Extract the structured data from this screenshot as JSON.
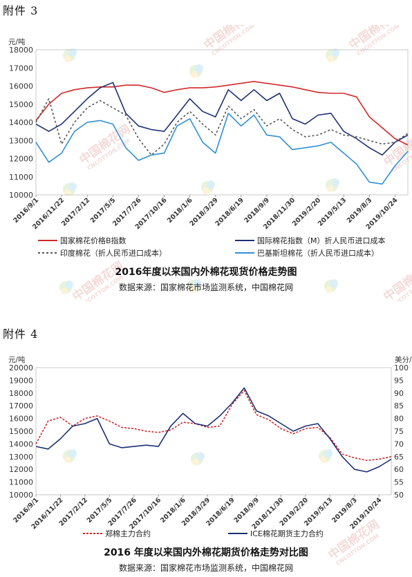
{
  "annex3_label": "附件 3",
  "annex4_label": "附件 4",
  "watermark": {
    "text": "中国棉花网",
    "sub": "CNCOTTON.COM"
  },
  "chart_data": [
    {
      "type": "line",
      "title": "2016年度以来国内外棉花现货价格走势图",
      "source": "数据来源：国家棉花市场监测系统，中国棉花网",
      "yunit": "元/吨",
      "ylim": [
        10000,
        18000
      ],
      "yticks": [
        10000,
        11000,
        12000,
        13000,
        14000,
        15000,
        16000,
        17000,
        18000
      ],
      "xticks": [
        "2016/9/1",
        "2016/11/22",
        "2017/2/12",
        "2017/5/5",
        "2017/7/26",
        "2017/10/16",
        "2018/1/6",
        "2018/3/29",
        "2018/6/19",
        "2018/9/9",
        "2018/11/30",
        "2019/2/20",
        "2019/5/13",
        "2019/8/3",
        "2019/10/24"
      ],
      "x": [
        0,
        0.5,
        1,
        1.5,
        2,
        2.5,
        3,
        3.5,
        4,
        4.5,
        5,
        5.5,
        6,
        6.5,
        7,
        7.5,
        8,
        8.5,
        9,
        9.5,
        10,
        10.5,
        11,
        11.5,
        12,
        12.5,
        13,
        13.5,
        14,
        14.5
      ],
      "series": [
        {
          "name": "国家棉花价格B指数",
          "color": "#d0282a",
          "dash": "",
          "values": [
            14100,
            15000,
            15600,
            15800,
            15900,
            15950,
            15950,
            16050,
            16050,
            15900,
            15650,
            15800,
            15900,
            15900,
            15950,
            16050,
            16150,
            16250,
            16150,
            16050,
            15950,
            15800,
            15650,
            15600,
            15600,
            15400,
            14300,
            13700,
            13100,
            12750
          ]
        },
        {
          "name": "国际棉花指数（M）折人民币进口成本",
          "color": "#1c2f73",
          "dash": "",
          "values": [
            13900,
            13500,
            13900,
            14600,
            15300,
            15900,
            16200,
            14500,
            13800,
            13600,
            13500,
            14400,
            15300,
            14600,
            14300,
            15800,
            15200,
            15800,
            15200,
            15600,
            14200,
            13900,
            14400,
            14500,
            13500,
            13100,
            12600,
            12200,
            12900,
            13300
          ]
        },
        {
          "name": "印度棉花（折人民币进口成本）",
          "color": "#555555",
          "dash": "3,3",
          "values": [
            14000,
            15300,
            12800,
            14000,
            14800,
            15200,
            14800,
            14400,
            13100,
            12200,
            12800,
            14000,
            14600,
            13900,
            13300,
            14900,
            14200,
            14700,
            13800,
            14200,
            13600,
            13200,
            13300,
            13600,
            13300,
            13200,
            13000,
            12800,
            12900,
            13400
          ]
        },
        {
          "name": "巴基斯坦棉花（折人民币进口成本）",
          "color": "#2f8fd5",
          "dash": "",
          "values": [
            12900,
            11800,
            12300,
            13500,
            14000,
            14100,
            13900,
            12600,
            11900,
            12200,
            12300,
            13800,
            14200,
            12900,
            12300,
            14500,
            13800,
            14400,
            13300,
            13200,
            12500,
            12600,
            12700,
            12900,
            12300,
            11700,
            10700,
            10600,
            11600,
            12400
          ]
        }
      ],
      "legend": "bottom"
    },
    {
      "type": "line",
      "title": "2016 年度以来国内外棉花期货价格走势对比图",
      "source": "数据来源：国家棉花市场监测系统，中国棉花网",
      "yunit": "元/吨",
      "y2unit": "美分/磅",
      "ylim": [
        10000,
        20000
      ],
      "y2lim": [
        50,
        100
      ],
      "yticks": [
        10000,
        11000,
        12000,
        13000,
        14000,
        15000,
        16000,
        17000,
        18000,
        19000,
        20000
      ],
      "y2ticks": [
        50,
        55,
        60,
        65,
        70,
        75,
        80,
        85,
        90,
        95,
        100
      ],
      "xticks": [
        "2016/9/1",
        "2016/11/22",
        "2017/2/12",
        "2017/5/5",
        "2017/7/26",
        "2017/10/16",
        "2018/1/6",
        "2018/3/29",
        "2018/6/19",
        "2018/9/9",
        "2018/11/30",
        "2019/2/20",
        "2019/5/13",
        "2019/8/3",
        "2019/10/24"
      ],
      "x": [
        0,
        0.5,
        1,
        1.5,
        2,
        2.5,
        3,
        3.5,
        4,
        4.5,
        5,
        5.5,
        6,
        6.5,
        7,
        7.5,
        8,
        8.5,
        9,
        9.5,
        10,
        10.5,
        11,
        11.5,
        12,
        12.5,
        13,
        13.5,
        14,
        14.5
      ],
      "series": [
        {
          "name": "郑棉主力合约",
          "axis": "left",
          "color": "#d0282a",
          "dash": "3,2",
          "values": [
            14000,
            15800,
            16100,
            15400,
            16000,
            16200,
            15800,
            15300,
            15200,
            15000,
            14900,
            15100,
            15700,
            15600,
            15300,
            15400,
            17100,
            18200,
            16300,
            15900,
            15200,
            14800,
            15200,
            15300,
            14500,
            13200,
            12900,
            12700,
            12800,
            13000
          ]
        },
        {
          "name": "ICE棉花期货主力合约",
          "axis": "right",
          "values_unit": "美分/磅",
          "color": "#1c2f73",
          "dash": "",
          "values": [
            69,
            68,
            72,
            77,
            78,
            80,
            70,
            68.5,
            69,
            69.5,
            69,
            77,
            82,
            78,
            77,
            81,
            86,
            92,
            83,
            81,
            78,
            75,
            77,
            78,
            72,
            65,
            60,
            59,
            61,
            64
          ]
        }
      ],
      "legend": "bottom"
    }
  ]
}
